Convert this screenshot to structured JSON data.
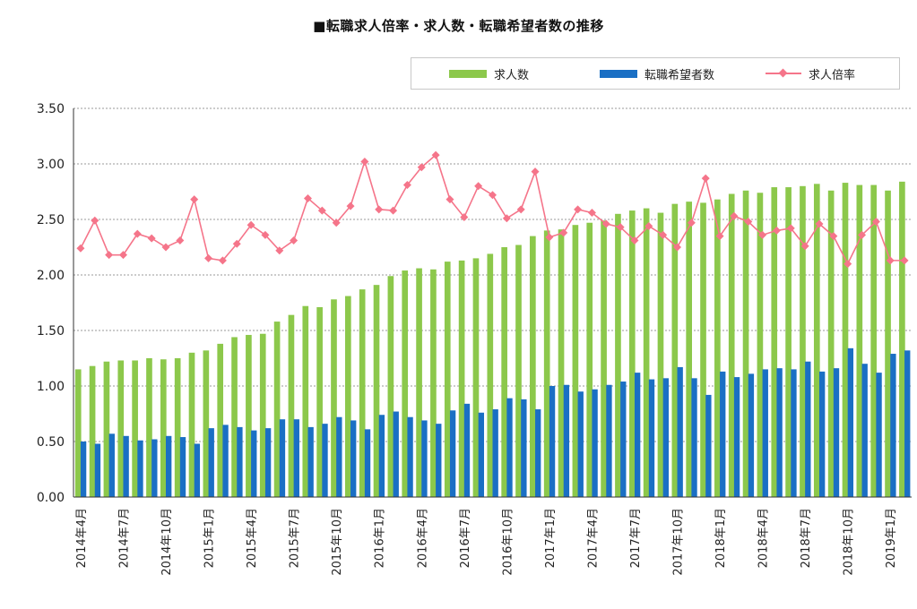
{
  "chart_data": {
    "type": "bar",
    "title": "■転職求人倍率・求人数・転職希望者数の推移",
    "ylim": [
      0,
      3.5
    ],
    "yticks": [
      "0.00",
      "0.50",
      "1.00",
      "1.50",
      "2.00",
      "2.50",
      "3.00",
      "3.50"
    ],
    "grid": true,
    "legend_position": "top-right",
    "categories": [
      "2014年4月",
      "2014年5月",
      "2014年6月",
      "2014年7月",
      "2014年8月",
      "2014年9月",
      "2014年10月",
      "2014年11月",
      "2014年12月",
      "2015年1月",
      "2015年2月",
      "2015年3月",
      "2015年4月",
      "2015年5月",
      "2015年6月",
      "2015年7月",
      "2015年8月",
      "2015年9月",
      "2015年10月",
      "2015年11月",
      "2015年12月",
      "2016年1月",
      "2016年2月",
      "2016年3月",
      "2016年4月",
      "2016年5月",
      "2016年6月",
      "2016年7月",
      "2016年8月",
      "2016年9月",
      "2016年10月",
      "2016年11月",
      "2016年12月",
      "2017年1月",
      "2017年2月",
      "2017年3月",
      "2017年4月",
      "2017年5月",
      "2017年6月",
      "2017年7月",
      "2017年8月",
      "2017年9月",
      "2017年10月",
      "2017年11月",
      "2017年12月",
      "2018年1月",
      "2018年2月",
      "2018年3月",
      "2018年4月",
      "2018年5月",
      "2018年6月",
      "2018年7月",
      "2018年8月",
      "2018年9月",
      "2018年10月",
      "2018年11月",
      "2018年12月",
      "2019年1月",
      "2019年2月"
    ],
    "xtick_labels": [
      "2014年4月",
      "2014年7月",
      "2014年10月",
      "2015年1月",
      "2015年4月",
      "2015年7月",
      "2015年10月",
      "2016年1月",
      "2016年4月",
      "2016年7月",
      "2016年10月",
      "2017年1月",
      "2017年4月",
      "2017年7月",
      "2017年10月",
      "2018年1月",
      "2018年4月",
      "2018年7月",
      "2018年10月",
      "2019年1月"
    ],
    "series": [
      {
        "name": "求人数",
        "kind": "bar",
        "color": "#8cc84b",
        "values": [
          1.15,
          1.18,
          1.22,
          1.23,
          1.23,
          1.25,
          1.24,
          1.25,
          1.3,
          1.32,
          1.38,
          1.44,
          1.46,
          1.47,
          1.58,
          1.64,
          1.72,
          1.71,
          1.78,
          1.81,
          1.87,
          1.91,
          1.99,
          2.04,
          2.06,
          2.05,
          2.12,
          2.13,
          2.15,
          2.19,
          2.25,
          2.27,
          2.35,
          2.4,
          2.41,
          2.45,
          2.47,
          2.49,
          2.55,
          2.58,
          2.6,
          2.56,
          2.64,
          2.66,
          2.65,
          2.68,
          2.73,
          2.76,
          2.74,
          2.79,
          2.79,
          2.8,
          2.82,
          2.76,
          2.83,
          2.81,
          2.81,
          2.76,
          2.84
        ]
      },
      {
        "name": "転職希望者数",
        "kind": "bar",
        "color": "#1a6fc4",
        "values": [
          0.5,
          0.48,
          0.57,
          0.55,
          0.51,
          0.52,
          0.55,
          0.54,
          0.48,
          0.62,
          0.65,
          0.63,
          0.6,
          0.62,
          0.7,
          0.7,
          0.63,
          0.66,
          0.72,
          0.69,
          0.61,
          0.74,
          0.77,
          0.72,
          0.69,
          0.66,
          0.78,
          0.84,
          0.76,
          0.79,
          0.89,
          0.88,
          0.79,
          1.0,
          1.01,
          0.95,
          0.97,
          1.01,
          1.04,
          1.12,
          1.06,
          1.07,
          1.17,
          1.07,
          0.92,
          1.13,
          1.08,
          1.11,
          1.15,
          1.16,
          1.15,
          1.22,
          1.13,
          1.16,
          1.34,
          1.2,
          1.12,
          1.29,
          1.32
        ]
      },
      {
        "name": "求人倍率",
        "kind": "line",
        "color": "#f5758a",
        "values": [
          2.24,
          2.49,
          2.18,
          2.18,
          2.37,
          2.33,
          2.25,
          2.31,
          2.68,
          2.15,
          2.13,
          2.28,
          2.45,
          2.36,
          2.22,
          2.31,
          2.69,
          2.58,
          2.47,
          2.62,
          3.02,
          2.59,
          2.58,
          2.81,
          2.97,
          3.08,
          2.68,
          2.52,
          2.8,
          2.72,
          2.51,
          2.59,
          2.93,
          2.34,
          2.38,
          2.59,
          2.56,
          2.46,
          2.43,
          2.31,
          2.44,
          2.36,
          2.25,
          2.47,
          2.87,
          2.35,
          2.53,
          2.48,
          2.36,
          2.4,
          2.42,
          2.26,
          2.46,
          2.35,
          2.1,
          2.36,
          2.48,
          2.13,
          2.13
        ]
      }
    ]
  }
}
